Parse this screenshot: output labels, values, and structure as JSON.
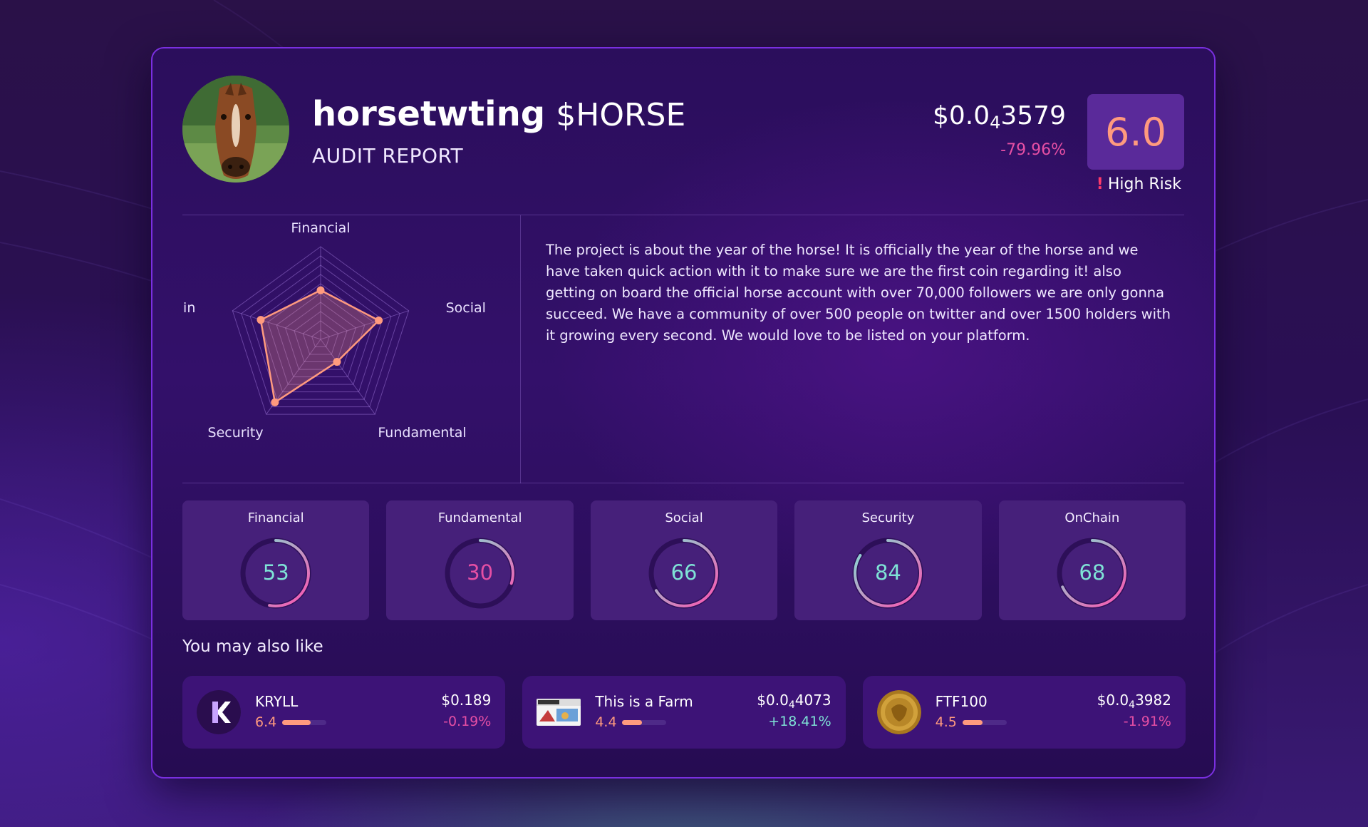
{
  "token": {
    "name": "horsetwting",
    "ticker": "$HORSE",
    "subtitle": "AUDIT REPORT",
    "price_prefix": "$0.0",
    "price_zeros": "4",
    "price_digits": "3579",
    "price_change": "-79.96%",
    "score": "6.0",
    "risk_label": "High Risk",
    "risk_icon": "exclamation-icon"
  },
  "radar": {
    "axes": [
      "Financial",
      "Social",
      "Fundamental",
      "Security",
      "OnChain"
    ],
    "values": [
      53,
      66,
      30,
      84,
      68
    ],
    "max": 100,
    "colors": {
      "stroke": "#ff9a7e",
      "fill": "rgba(255,154,126,0.28)",
      "grid": "rgba(170,130,230,0.45)"
    }
  },
  "description": "The project is about the year of the horse! It is officially the year of the horse and we have taken quick action with it to make sure we are the first coin regarding it! also getting on board the official horse account with over 70,000 followers we are only gonna succeed. We have a community of over 500 people on twitter and over 1500 holders with it growing every second. We would love to be listed on your platform.",
  "metrics": [
    {
      "label": "Financial",
      "value": "53",
      "percent": 53,
      "value_color": "#7fe3d6"
    },
    {
      "label": "Fundamental",
      "value": "30",
      "percent": 30,
      "value_color": "#e64fa4"
    },
    {
      "label": "Social",
      "value": "66",
      "percent": 66,
      "value_color": "#7fe3d6"
    },
    {
      "label": "Security",
      "value": "84",
      "percent": 84,
      "value_color": "#7fe3d6"
    },
    {
      "label": "OnChain",
      "value": "68",
      "percent": 68,
      "value_color": "#7fe3d6"
    }
  ],
  "also_title": "You may also like",
  "recommendations": [
    {
      "name": "KRYLL",
      "score": "6.4",
      "score_fraction": 0.64,
      "price_prefix": "$0.189",
      "price_zeros": "",
      "price_digits": "",
      "change": "-0.19%",
      "change_color": "#e64fa4",
      "logo": "kryll-logo-icon"
    },
    {
      "name": "This is a Farm",
      "score": "4.4",
      "score_fraction": 0.44,
      "price_prefix": "$0.0",
      "price_zeros": "4",
      "price_digits": "4073",
      "change": "+18.41%",
      "change_color": "#7fe3d6",
      "logo": "farm-logo-icon"
    },
    {
      "name": "FTF100",
      "score": "4.5",
      "score_fraction": 0.45,
      "price_prefix": "$0.0",
      "price_zeros": "4",
      "price_digits": "3982",
      "change": "-1.91%",
      "change_color": "#e64fa4",
      "logo": "ftf100-coin-icon"
    }
  ],
  "colors": {
    "accent": "#ff9a7e",
    "positive": "#7fe3d6",
    "negative": "#e64fa4",
    "card_border": "#7a2fe0"
  }
}
